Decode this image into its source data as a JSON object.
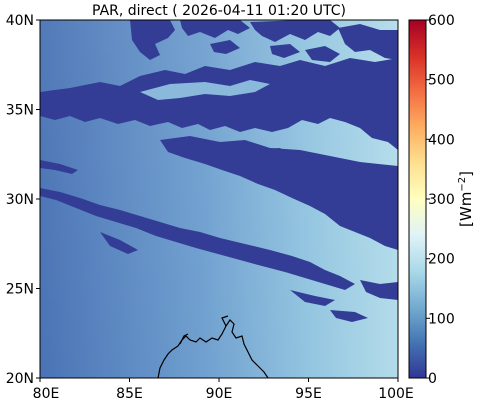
{
  "title": "PAR, direct ( 2026-04-11 01:20 UTC)",
  "map": {
    "lon_ticks": [
      "80E",
      "85E",
      "90E",
      "95E",
      "100E"
    ],
    "lat_ticks": [
      "40N",
      "35N",
      "30N",
      "25N",
      "20N"
    ],
    "lon_range": [
      80,
      100
    ],
    "lat_range": [
      20,
      40
    ]
  },
  "colorbar": {
    "label": "[Wm",
    "label_sup": "−2",
    "label_end": "]",
    "ticks": [
      "600",
      "500",
      "400",
      "300",
      "200",
      "100",
      "0"
    ],
    "range": [
      0,
      600
    ],
    "colormap": [
      "#313695",
      "#4575b4",
      "#74add1",
      "#abd9e9",
      "#e0f3f8",
      "#ffffbf",
      "#fee090",
      "#fdae61",
      "#f46d43",
      "#d73027",
      "#a50026"
    ]
  },
  "colors": {
    "cloud": "#333d96",
    "clear_sky_dark": "#4a73b5",
    "clear_sky_light": "#b0dbe9",
    "coastline": "#000000"
  }
}
